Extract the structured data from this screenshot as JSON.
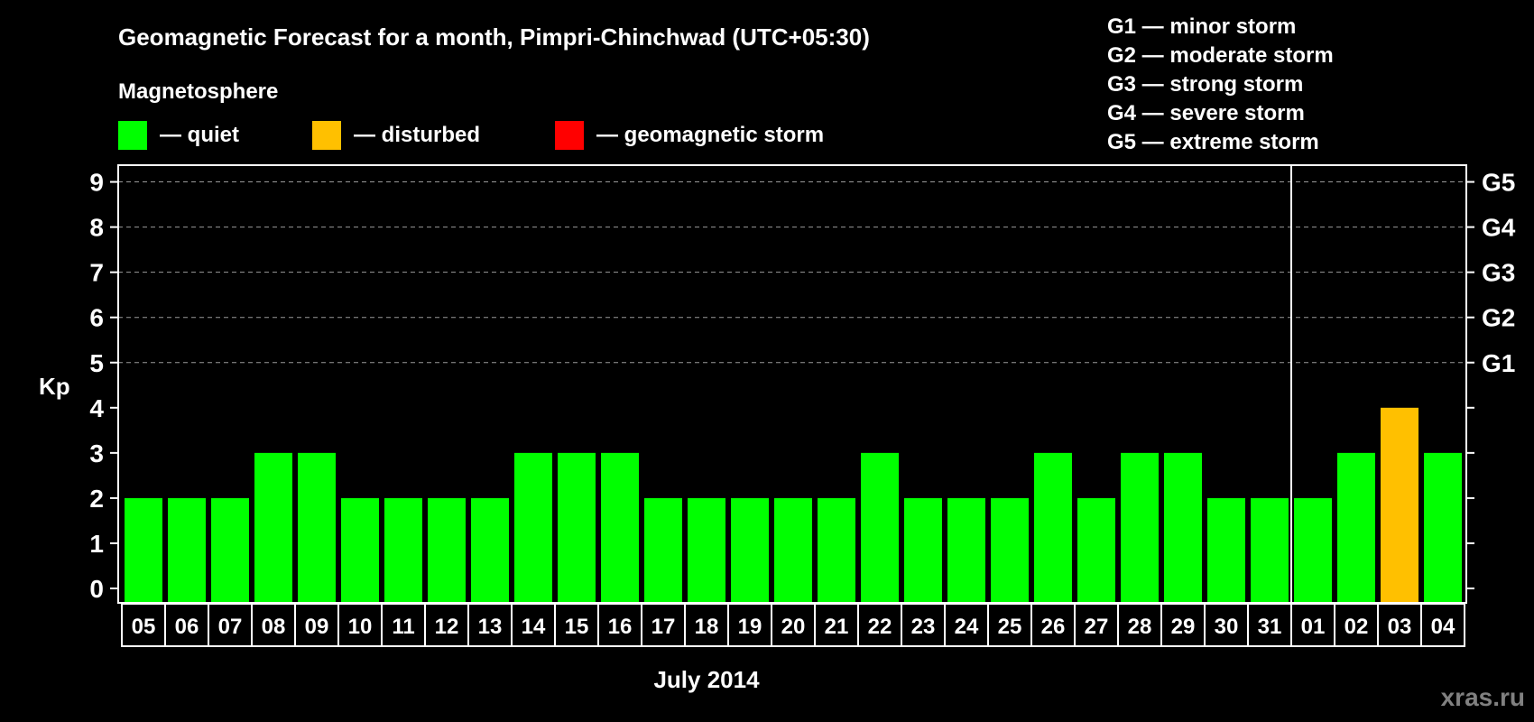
{
  "chart_data": {
    "type": "bar",
    "title": "Geomagnetic Forecast for a month, Pimpri-Chinchwad (UTC+05:30)",
    "legend_title": "Magnetosphere",
    "legend": [
      {
        "label": "— quiet",
        "color": "#00ff00"
      },
      {
        "label": "— disturbed",
        "color": "#ffc000"
      },
      {
        "label": "— geomagnetic storm",
        "color": "#ff0000"
      }
    ],
    "storm_scale": [
      "G1 — minor storm",
      "G2 — moderate storm",
      "G3 — strong storm",
      "G4 — severe storm",
      "G5 — extreme storm"
    ],
    "ylabel": "Kp",
    "xlabel": "July 2014",
    "ylim": [
      0,
      9
    ],
    "yticks": [
      0,
      1,
      2,
      3,
      4,
      5,
      6,
      7,
      8,
      9
    ],
    "right_ticks": [
      {
        "value": 5,
        "label": "G1"
      },
      {
        "value": 6,
        "label": "G2"
      },
      {
        "value": 7,
        "label": "G3"
      },
      {
        "value": 8,
        "label": "G4"
      },
      {
        "value": 9,
        "label": "G5"
      }
    ],
    "grid_values": [
      5,
      6,
      7,
      8,
      9
    ],
    "month_divider_after": "31",
    "categories": [
      "05",
      "06",
      "07",
      "08",
      "09",
      "10",
      "11",
      "12",
      "13",
      "14",
      "15",
      "16",
      "17",
      "18",
      "19",
      "20",
      "21",
      "22",
      "23",
      "24",
      "25",
      "26",
      "27",
      "28",
      "29",
      "30",
      "31",
      "01",
      "02",
      "03",
      "04"
    ],
    "values": [
      2,
      2,
      2,
      3,
      3,
      2,
      2,
      2,
      2,
      3,
      3,
      3,
      2,
      2,
      2,
      2,
      2,
      3,
      2,
      2,
      2,
      3,
      2,
      3,
      3,
      2,
      2,
      2,
      3,
      4,
      3
    ],
    "status": [
      "quiet",
      "quiet",
      "quiet",
      "quiet",
      "quiet",
      "quiet",
      "quiet",
      "quiet",
      "quiet",
      "quiet",
      "quiet",
      "quiet",
      "quiet",
      "quiet",
      "quiet",
      "quiet",
      "quiet",
      "quiet",
      "quiet",
      "quiet",
      "quiet",
      "quiet",
      "quiet",
      "quiet",
      "quiet",
      "quiet",
      "quiet",
      "quiet",
      "quiet",
      "disturbed",
      "quiet"
    ]
  },
  "watermark": "xras.ru",
  "colors": {
    "quiet": "#00ff00",
    "disturbed": "#ffc000",
    "storm": "#ff0000",
    "grid": "#999999",
    "watermark": "#808080"
  }
}
